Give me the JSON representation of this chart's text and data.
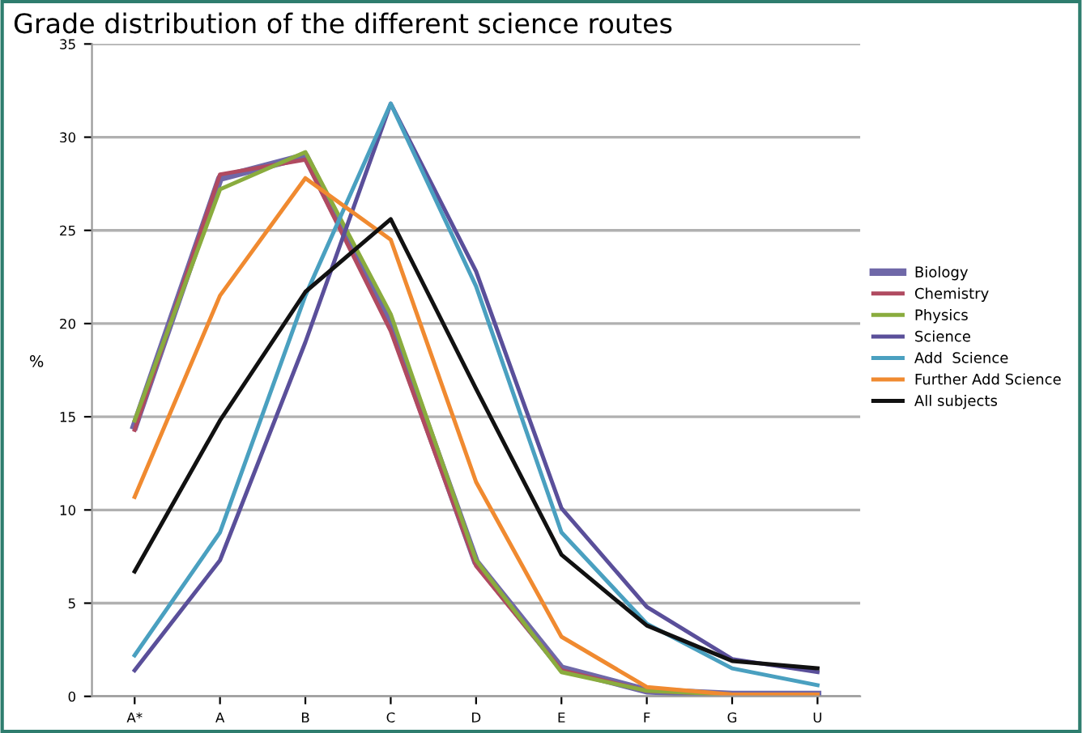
{
  "chart_data": {
    "type": "line",
    "title": "Grade distribution of the different science routes",
    "ylabel": "%",
    "categories": [
      "A*",
      "A",
      "B",
      "C",
      "D",
      "E",
      "F",
      "G",
      "U"
    ],
    "series": [
      {
        "name": "Biology",
        "color": "#6f68a8",
        "values": [
          14.5,
          27.8,
          29.0,
          20.0,
          7.2,
          1.5,
          0.3,
          0.1,
          0.1
        ]
      },
      {
        "name": "Chemistry",
        "color": "#b04a60",
        "values": [
          14.3,
          28.0,
          28.8,
          19.6,
          7.0,
          1.4,
          0.3,
          0.1,
          0.1
        ]
      },
      {
        "name": "Physics",
        "color": "#8aac3e",
        "values": [
          14.8,
          27.2,
          29.2,
          20.5,
          7.3,
          1.3,
          0.3,
          0.1,
          0.1
        ]
      },
      {
        "name": "Science",
        "color": "#5a4f9a",
        "values": [
          1.4,
          7.3,
          19.0,
          31.8,
          22.8,
          10.1,
          4.8,
          2.0,
          1.3
        ]
      },
      {
        "name": "Add  Science",
        "color": "#4aa0c0",
        "values": [
          2.2,
          8.8,
          21.5,
          31.8,
          22.0,
          8.8,
          3.9,
          1.5,
          0.6
        ]
      },
      {
        "name": "Further Add Science",
        "color": "#f08a30",
        "values": [
          10.7,
          21.5,
          27.8,
          24.5,
          11.5,
          3.2,
          0.5,
          0.1,
          0.1
        ]
      },
      {
        "name": "All subjects",
        "color": "#111111",
        "values": [
          6.7,
          14.8,
          21.7,
          25.6,
          16.5,
          7.6,
          3.8,
          1.9,
          1.5
        ]
      }
    ],
    "ylim": [
      0,
      35
    ],
    "yticks": [
      0,
      5,
      10,
      15,
      20,
      25,
      30,
      35
    ],
    "grid": "y",
    "legend": "right",
    "marker": "none",
    "line_style": "solid"
  }
}
